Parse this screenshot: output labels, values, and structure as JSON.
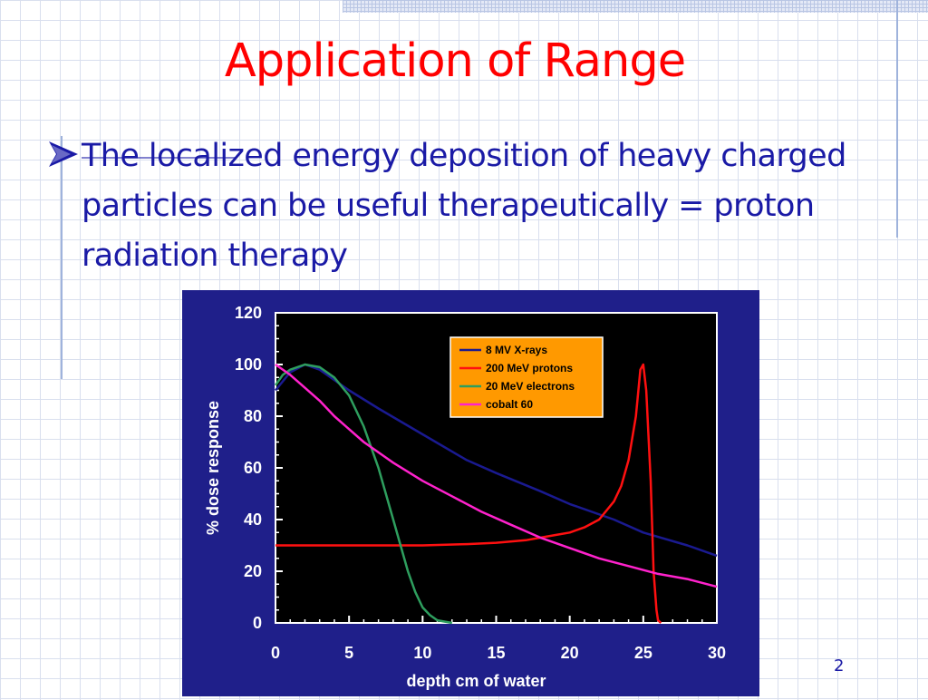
{
  "slide": {
    "title": "Application of Range",
    "bullet": "The localized energy deposition of heavy charged particles can be useful therapeutically = proton radiation therapy",
    "page_number": "2"
  },
  "colors": {
    "title": "#ff0000",
    "text": "#1a1aa6",
    "chart_frame": "#1f1f8a",
    "plot_bg": "#000000",
    "legend_bg": "#ff9900"
  },
  "chart_data": {
    "type": "line",
    "xlabel": "depth cm of water",
    "ylabel": "% dose response",
    "xlim": [
      0,
      30
    ],
    "ylim": [
      0,
      120
    ],
    "x_ticks": [
      0,
      5,
      10,
      15,
      20,
      25,
      30
    ],
    "y_ticks": [
      0,
      20,
      40,
      60,
      80,
      100,
      120
    ],
    "legend_position": "top-right",
    "series": [
      {
        "name": "8 MV X-rays",
        "color": "#1a1a90",
        "points": [
          [
            0,
            90
          ],
          [
            1,
            97
          ],
          [
            2,
            100
          ],
          [
            3,
            98
          ],
          [
            4,
            94
          ],
          [
            5,
            90
          ],
          [
            7,
            83
          ],
          [
            10,
            73
          ],
          [
            13,
            63
          ],
          [
            15,
            58
          ],
          [
            18,
            51
          ],
          [
            20,
            46
          ],
          [
            23,
            40
          ],
          [
            25,
            35
          ],
          [
            28,
            30
          ],
          [
            30,
            26
          ]
        ]
      },
      {
        "name": "200 MeV protons",
        "color": "#ff1010",
        "points": [
          [
            0,
            30
          ],
          [
            5,
            30
          ],
          [
            10,
            30
          ],
          [
            13,
            30.5
          ],
          [
            15,
            31
          ],
          [
            17,
            32
          ],
          [
            19,
            34
          ],
          [
            20,
            35
          ],
          [
            21,
            37
          ],
          [
            22,
            40
          ],
          [
            23,
            47
          ],
          [
            23.5,
            53
          ],
          [
            24,
            63
          ],
          [
            24.5,
            80
          ],
          [
            24.8,
            98
          ],
          [
            25,
            100
          ],
          [
            25.2,
            90
          ],
          [
            25.5,
            55
          ],
          [
            25.7,
            20
          ],
          [
            25.9,
            5
          ],
          [
            26,
            1
          ],
          [
            26.2,
            0
          ]
        ]
      },
      {
        "name": "20 MeV electrons",
        "color": "#2e9e5e",
        "points": [
          [
            0,
            92
          ],
          [
            0.5,
            96
          ],
          [
            1,
            98
          ],
          [
            2,
            100
          ],
          [
            3,
            99
          ],
          [
            4,
            95
          ],
          [
            5,
            88
          ],
          [
            6,
            76
          ],
          [
            7,
            60
          ],
          [
            8,
            40
          ],
          [
            8.5,
            30
          ],
          [
            9,
            20
          ],
          [
            9.5,
            12
          ],
          [
            10,
            6
          ],
          [
            10.5,
            3
          ],
          [
            11,
            1
          ],
          [
            12,
            0
          ]
        ]
      },
      {
        "name": "cobalt 60",
        "color": "#ff22cc",
        "points": [
          [
            0,
            100
          ],
          [
            1,
            96
          ],
          [
            2,
            91
          ],
          [
            3,
            86
          ],
          [
            4,
            80
          ],
          [
            5,
            75
          ],
          [
            6,
            70
          ],
          [
            8,
            62
          ],
          [
            10,
            55
          ],
          [
            12,
            49
          ],
          [
            14,
            43
          ],
          [
            16,
            38
          ],
          [
            18,
            33
          ],
          [
            20,
            29
          ],
          [
            22,
            25
          ],
          [
            24,
            22
          ],
          [
            26,
            19
          ],
          [
            28,
            17
          ],
          [
            30,
            14
          ]
        ]
      }
    ]
  }
}
